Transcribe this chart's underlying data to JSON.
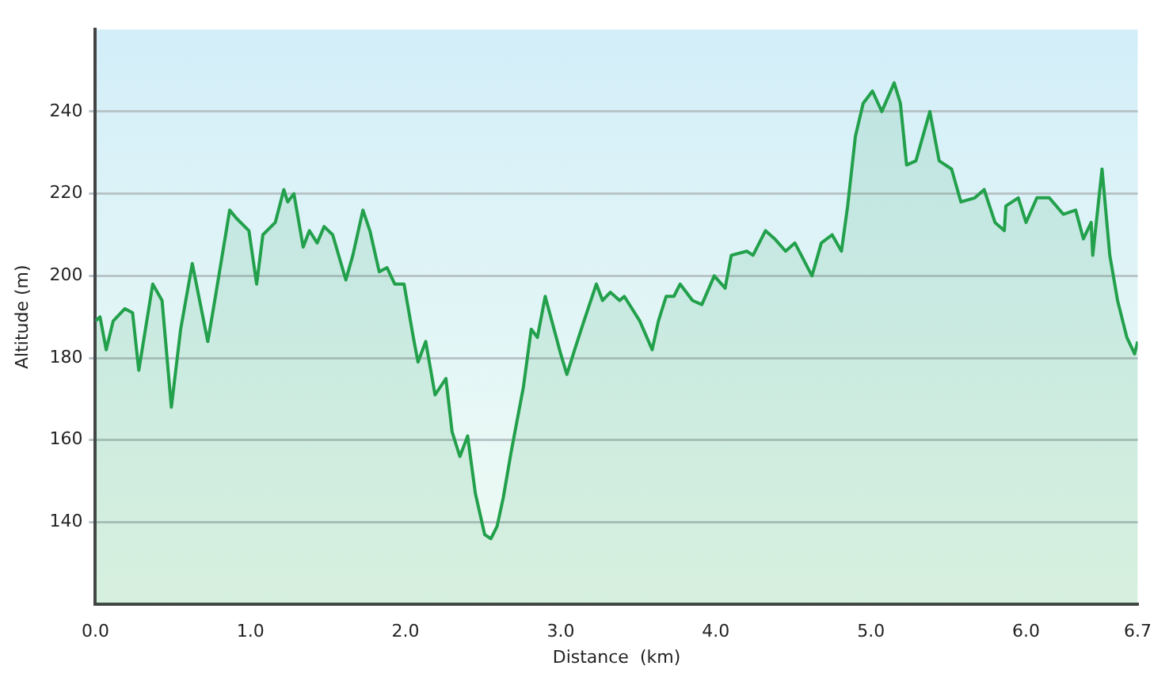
{
  "chart_data": {
    "type": "area",
    "xlabel": "Distance  (km)",
    "ylabel": "Altitude (m)",
    "xlim": [
      0,
      6.72
    ],
    "xticks": [
      {
        "value": 0,
        "label": "0.0"
      },
      {
        "value": 1,
        "label": "1.0"
      },
      {
        "value": 2,
        "label": "2.0"
      },
      {
        "value": 3,
        "label": "3.0"
      },
      {
        "value": 4,
        "label": "4.0"
      },
      {
        "value": 5,
        "label": "5.0"
      },
      {
        "value": 6,
        "label": "6.0"
      },
      {
        "value": 6.72,
        "label": "6.7"
      }
    ],
    "ylim": [
      120,
      260
    ],
    "yticks": [
      140,
      160,
      180,
      200,
      220,
      240
    ],
    "grid": "y",
    "legend": false,
    "series": [
      {
        "color": "#22a04b",
        "x": [
          0,
          0.03,
          0.07,
          0.115,
          0.19,
          0.24,
          0.28,
          0.37,
          0.43,
          0.49,
          0.55,
          0.625,
          0.725,
          0.77,
          0.866,
          0.91,
          0.99,
          1.04,
          1.08,
          1.16,
          1.215,
          1.24,
          1.28,
          1.34,
          1.38,
          1.43,
          1.475,
          1.53,
          1.615,
          1.66,
          1.725,
          1.77,
          1.83,
          1.88,
          1.93,
          1.99,
          2.05,
          2.08,
          2.13,
          2.19,
          2.26,
          2.3,
          2.35,
          2.4,
          2.45,
          2.51,
          2.55,
          2.59,
          2.63,
          2.68,
          2.76,
          2.81,
          2.85,
          2.9,
          2.95,
          3.0,
          3.04,
          3.09,
          3.15,
          3.23,
          3.27,
          3.32,
          3.38,
          3.41,
          3.51,
          3.59,
          3.63,
          3.68,
          3.73,
          3.77,
          3.85,
          3.91,
          3.99,
          4.06,
          4.1,
          4.2,
          4.24,
          4.32,
          4.38,
          4.45,
          4.51,
          4.62,
          4.68,
          4.75,
          4.81,
          4.85,
          4.9,
          4.95,
          5.01,
          5.07,
          5.15,
          5.19,
          5.23,
          5.29,
          5.38,
          5.44,
          5.52,
          5.58,
          5.67,
          5.73,
          5.8,
          5.86,
          5.87,
          5.95,
          6.0,
          6.07,
          6.15,
          6.24,
          6.32,
          6.37,
          6.42,
          6.43,
          6.49,
          6.54,
          6.59,
          6.65,
          6.7,
          6.72
        ],
        "values": [
          189,
          190,
          182,
          189,
          192,
          191,
          177,
          198,
          194,
          168,
          187,
          203,
          184,
          194,
          216,
          214,
          211,
          198,
          210,
          213,
          221,
          218,
          220,
          207,
          211,
          208,
          212,
          210,
          199,
          205,
          216,
          211,
          201,
          202,
          198,
          198,
          185,
          179,
          184,
          171,
          175,
          162,
          156,
          161,
          147,
          137,
          136,
          139,
          146,
          157,
          173,
          187,
          185,
          195,
          188,
          181,
          176,
          182,
          189,
          198,
          194,
          196,
          194,
          195,
          189,
          182,
          189,
          195,
          195,
          198,
          194,
          193,
          200,
          197,
          205,
          206,
          205,
          211,
          209,
          206,
          208,
          200,
          208,
          210,
          206,
          217,
          234,
          242,
          245,
          240,
          247,
          242,
          227,
          228,
          240,
          228,
          226,
          218,
          219,
          221,
          213,
          211,
          217,
          219,
          213,
          219,
          219,
          215,
          216,
          209,
          213,
          205,
          226,
          205,
          194,
          185,
          181,
          184
        ]
      }
    ]
  }
}
